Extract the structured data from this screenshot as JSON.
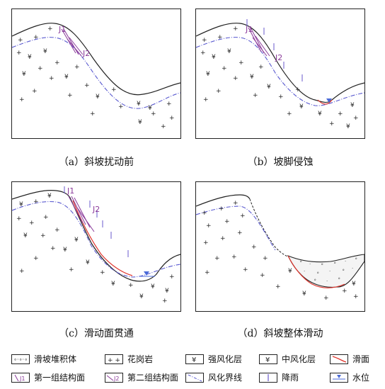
{
  "panels": [
    {
      "id": "a",
      "caption": "（a）斜坡扰动前",
      "labels": [
        "J1",
        "J2"
      ]
    },
    {
      "id": "b",
      "caption": "（b）坡脚侵蚀",
      "labels": [
        "J1",
        "J2"
      ]
    },
    {
      "id": "c",
      "caption": "（c）滑动面贯通",
      "labels": [
        "J1",
        "J2"
      ]
    },
    {
      "id": "d",
      "caption": "（d）斜坡整体滑动",
      "labels": []
    }
  ],
  "legend": [
    {
      "key": "landslide-deposit",
      "label": "滑坡堆积体"
    },
    {
      "key": "granite",
      "label": "花岗岩"
    },
    {
      "key": "strong-weathering",
      "label": "强风化层"
    },
    {
      "key": "medium-weathering",
      "label": "中风化层"
    },
    {
      "key": "slip-surface",
      "label": "滑面"
    },
    {
      "key": "joint-set-1",
      "label": "第一组结构面",
      "symbol_text": "J1"
    },
    {
      "key": "joint-set-2",
      "label": "第二组结构面",
      "symbol_text": "J2"
    },
    {
      "key": "weathering-boundary",
      "label": "风化界线"
    },
    {
      "key": "rainfall",
      "label": "降雨"
    },
    {
      "key": "water-level",
      "label": "水位"
    }
  ],
  "colors": {
    "outline": "#222222",
    "boundary": "#5a5ad0",
    "joint": "#8a3a9a",
    "slip": "#e0342c",
    "rain": "#6a5acd",
    "water": "#4a6ad8"
  }
}
